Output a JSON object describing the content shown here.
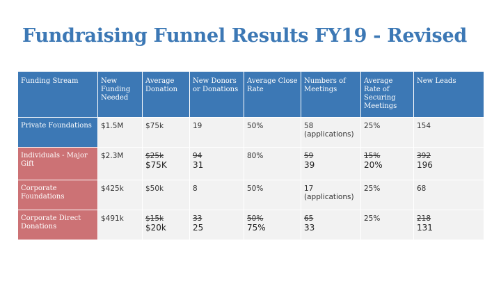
{
  "slide": {
    "title": "Fundraising Funnel Results FY19 - Revised"
  },
  "colors": {
    "title": "#3c78b5",
    "header_bg": "#3c78b5",
    "stream_private": "#3c78b5",
    "stream_other": "#cc7275",
    "cell_bg": "#f2f2f2"
  },
  "table": {
    "headers": [
      "Funding Stream",
      "New Funding Needed",
      "Average Donation",
      "New Donors or Donations",
      "Average Close Rate",
      "Numbers of Meetings",
      "Average Rate of Securing Meetings",
      "New Leads"
    ],
    "rows": [
      {
        "stream": "Private Foundations",
        "cells": [
          {
            "value": "$1.5M"
          },
          {
            "value": "$75k"
          },
          {
            "value": "19"
          },
          {
            "value": "50%"
          },
          {
            "value": "58 (applications)"
          },
          {
            "value": "25%"
          },
          {
            "value": "154"
          }
        ]
      },
      {
        "stream": "Individuals - Major Gift",
        "cells": [
          {
            "value": "$2.3M"
          },
          {
            "old": "$25k",
            "new": "$75K"
          },
          {
            "old": "94",
            "new": "31"
          },
          {
            "value": "80%"
          },
          {
            "old": "59",
            "new": "39"
          },
          {
            "old": "15%",
            "new": "20%"
          },
          {
            "old": "392",
            "new": "196"
          }
        ]
      },
      {
        "stream": "Corporate Foundations",
        "cells": [
          {
            "value": "$425k"
          },
          {
            "value": "$50k"
          },
          {
            "value": "8"
          },
          {
            "value": "50%"
          },
          {
            "value": "17 (applications)"
          },
          {
            "value": "25%"
          },
          {
            "value": "68"
          }
        ]
      },
      {
        "stream": "Corporate Direct Donations",
        "cells": [
          {
            "value": "$491k"
          },
          {
            "old": "$15k",
            "new": "$20k"
          },
          {
            "old": "33",
            "new": "25"
          },
          {
            "old": "50%",
            "new": "75%"
          },
          {
            "old": "65",
            "new": "33"
          },
          {
            "value": "25%"
          },
          {
            "old": "218",
            "new": "131"
          }
        ]
      }
    ]
  }
}
